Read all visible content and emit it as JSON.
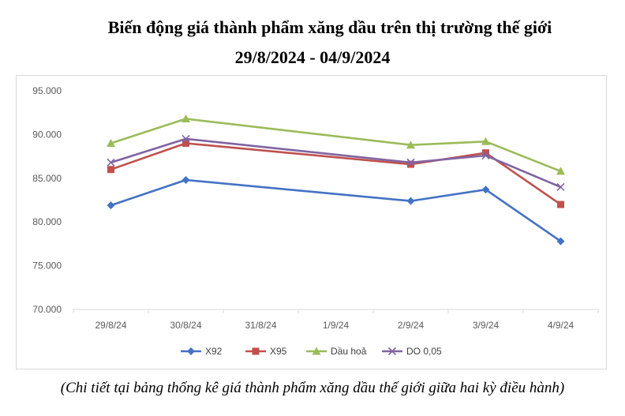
{
  "chart_data": {
    "type": "line",
    "title_line1": "Biến động giá thành phẩm xăng dầu trên thị trường thế giới",
    "title_line2": "29/8/2024 - 04/9/2024",
    "caption": "(Chi tiết tại bảng thống kê giá thành phẩm xăng dầu thế giới giữa hai kỳ điều hành)",
    "categories": [
      "29/8/24",
      "30/8/24",
      "31/8/24",
      "1/9/24",
      "2/9/24",
      "3/9/24",
      "4/9/24"
    ],
    "y_ticks": [
      "70.000",
      "75.000",
      "80.000",
      "85.000",
      "90.000",
      "95.000"
    ],
    "ylim": [
      70000,
      95000
    ],
    "grid": false,
    "legend_position": "bottom",
    "series": [
      {
        "name": "X92",
        "color": "#4472c4",
        "marker": "diamond",
        "points": [
          [
            0,
            81900
          ],
          [
            1,
            84800
          ],
          [
            4,
            82400
          ],
          [
            5,
            83700
          ],
          [
            6,
            77800
          ]
        ]
      },
      {
        "name": "X95",
        "color": "#c0504d",
        "marker": "square",
        "points": [
          [
            0,
            86000
          ],
          [
            1,
            89000
          ],
          [
            4,
            86600
          ],
          [
            5,
            87900
          ],
          [
            6,
            82000
          ]
        ]
      },
      {
        "name": "Dầu hoả",
        "color": "#9bbb59",
        "marker": "triangle",
        "points": [
          [
            0,
            89000
          ],
          [
            1,
            91800
          ],
          [
            4,
            88800
          ],
          [
            5,
            89200
          ],
          [
            6,
            85800
          ]
        ]
      },
      {
        "name": "DO 0,05",
        "color": "#8064a2",
        "marker": "x",
        "points": [
          [
            0,
            86800
          ],
          [
            1,
            89500
          ],
          [
            4,
            86800
          ],
          [
            5,
            87600
          ],
          [
            6,
            84000
          ]
        ]
      }
    ]
  }
}
